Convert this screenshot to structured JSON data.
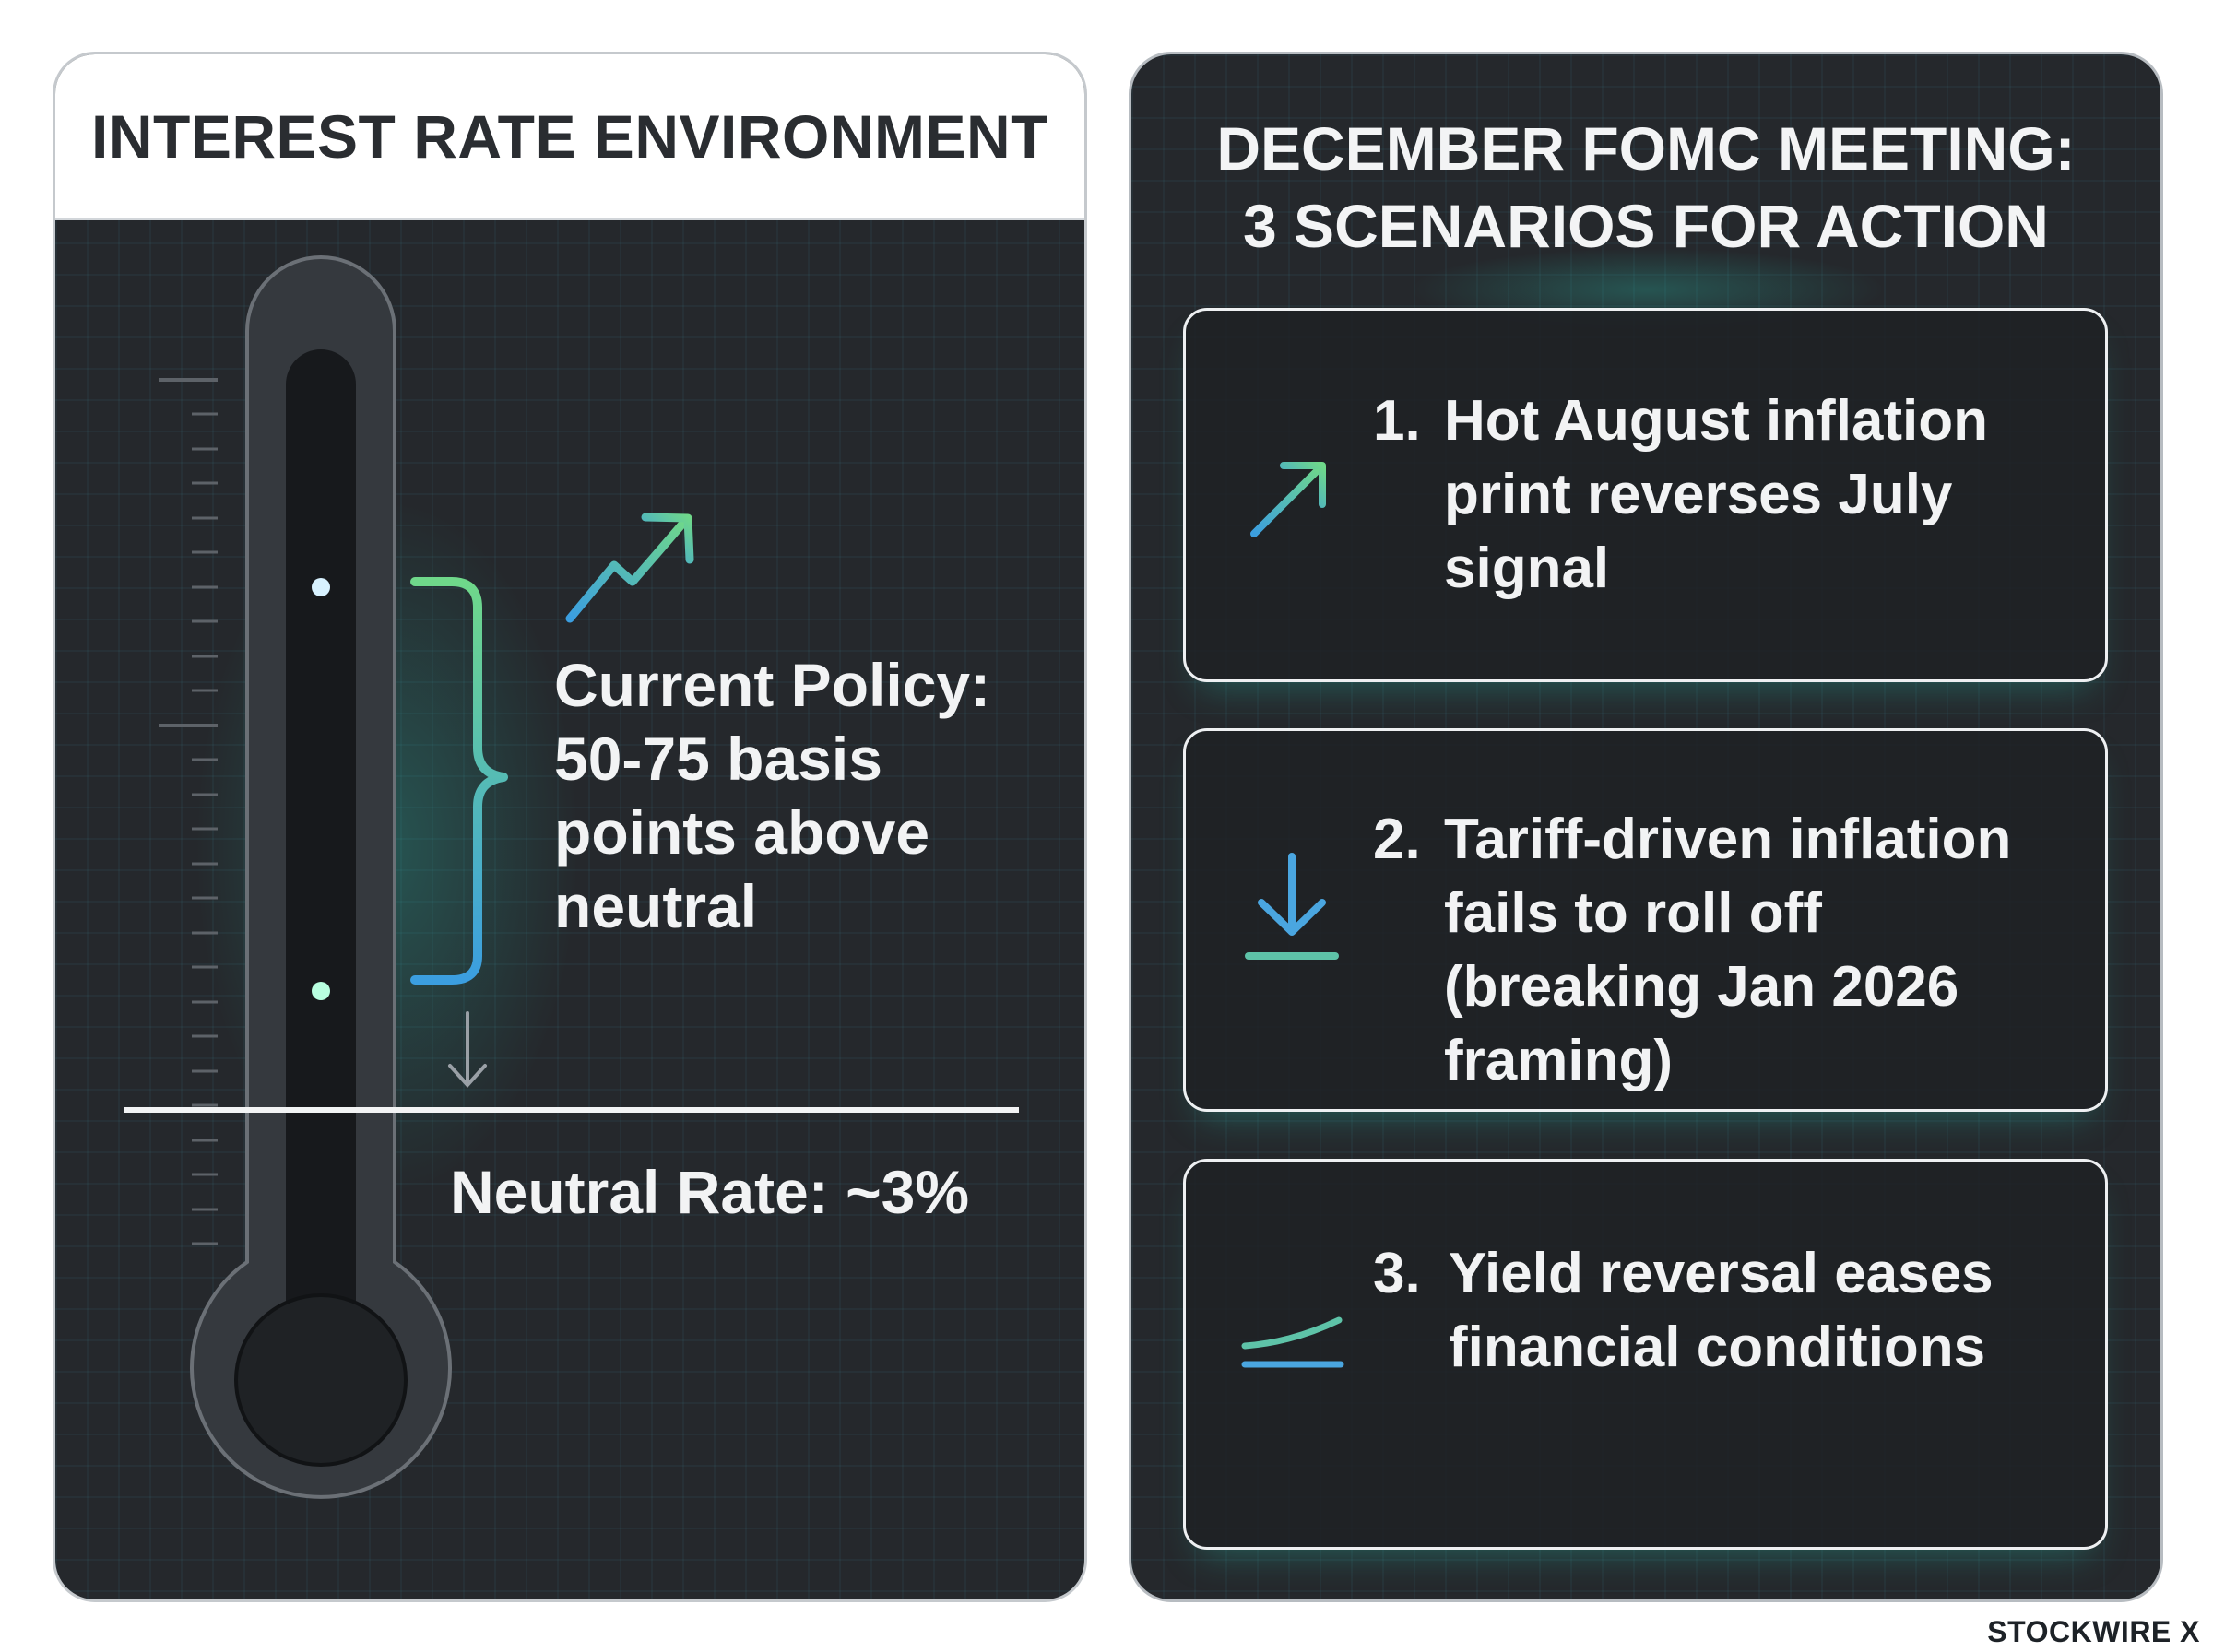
{
  "left_panel": {
    "title": "INTEREST RATE ENVIRONMENT",
    "policy_label": "Current Policy: 50-75 basis points above neutral",
    "neutral_label": "Neutral Rate: ~3%",
    "icons": [
      "thermometer-icon",
      "trend-up-icon",
      "brace-icon",
      "arrow-down-icon"
    ]
  },
  "right_panel": {
    "title": "DECEMBER FOMC MEETING:\n3 SCENARIOS FOR ACTION",
    "scenarios": [
      {
        "number": "1.",
        "text": "Hot August inflation print reverses July signal",
        "icon": "arrow-up-right-icon"
      },
      {
        "number": "2.",
        "text": "Tariff-driven inflation fails to roll off (breaking Jan 2026 framing)",
        "icon": "arrow-down-to-line-icon"
      },
      {
        "number": "3.",
        "text": "Yield reversal eases financial conditions",
        "icon": "curve-icon"
      }
    ]
  },
  "brand": "STOCKWIRE X",
  "colors": {
    "panel_bg": "#25282c",
    "accent_teal": "#3fc9b0",
    "accent_blue": "#4aa6e0",
    "accent_green": "#6fd88a"
  }
}
